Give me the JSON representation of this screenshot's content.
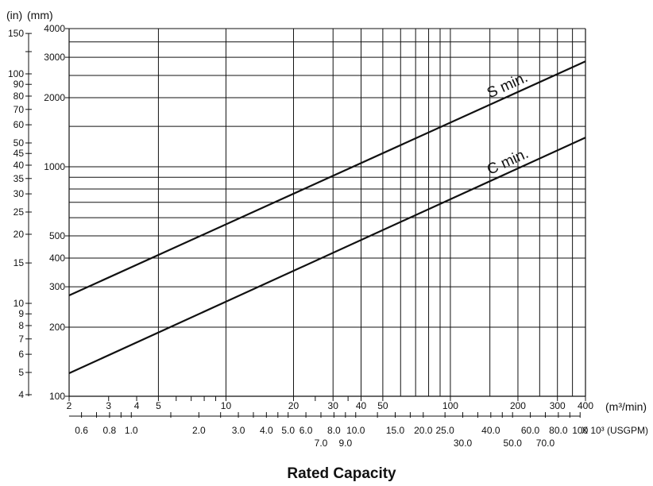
{
  "chart_data": {
    "type": "line",
    "title": "",
    "xlabel": "Rated Capacity",
    "x_scale": "log",
    "y_scale": "log",
    "xlim": [
      2,
      400
    ],
    "ylim_mm": [
      100,
      4000
    ],
    "x_units": "(m³/min)",
    "x2_units": "X 10³ (USGPM)",
    "y_units_mm": "(mm)",
    "y_units_in": "(in)",
    "grid": true,
    "x_ticks_major": [
      {
        "v": 2,
        "l": "2"
      },
      {
        "v": 3,
        "l": "3"
      },
      {
        "v": 4,
        "l": "4"
      },
      {
        "v": 5,
        "l": "5"
      },
      {
        "v": 10,
        "l": "10"
      },
      {
        "v": 20,
        "l": "20"
      },
      {
        "v": 30,
        "l": "30"
      },
      {
        "v": 40,
        "l": "40"
      },
      {
        "v": 50,
        "l": "50"
      },
      {
        "v": 100,
        "l": "100"
      },
      {
        "v": 200,
        "l": "200"
      },
      {
        "v": 300,
        "l": "300"
      },
      {
        "v": 400,
        "l": "400"
      }
    ],
    "x_gridlines": [
      5,
      10,
      20,
      30,
      40,
      50,
      60,
      70,
      80,
      90,
      100,
      150,
      200,
      250,
      300,
      350,
      400
    ],
    "x_minor_ticks": [
      6,
      7,
      8,
      9,
      25,
      35
    ],
    "y_ticks_mm": [
      {
        "v": 100,
        "l": "100"
      },
      {
        "v": 200,
        "l": "200"
      },
      {
        "v": 300,
        "l": "300"
      },
      {
        "v": 400,
        "l": "400"
      },
      {
        "v": 500,
        "l": "500"
      },
      {
        "v": 1000,
        "l": "1000"
      },
      {
        "v": 2000,
        "l": "2000"
      },
      {
        "v": 3000,
        "l": "3000"
      },
      {
        "v": 4000,
        "l": "4000"
      }
    ],
    "y_gridlines_mm": [
      200,
      300,
      400,
      500,
      600,
      700,
      800,
      900,
      1000,
      1500,
      2000,
      2500,
      3000,
      3500,
      4000
    ],
    "y_ticks_in": [
      {
        "v": 4,
        "l": "4"
      },
      {
        "v": 5,
        "l": "5"
      },
      {
        "v": 6,
        "l": "6"
      },
      {
        "v": 7,
        "l": "7"
      },
      {
        "v": 8,
        "l": "8"
      },
      {
        "v": 9,
        "l": "9"
      },
      {
        "v": 10,
        "l": "10"
      },
      {
        "v": 15,
        "l": "15"
      },
      {
        "v": 20,
        "l": "20"
      },
      {
        "v": 25,
        "l": "25"
      },
      {
        "v": 30,
        "l": "30"
      },
      {
        "v": 35,
        "l": "35"
      },
      {
        "v": 40,
        "l": "40"
      },
      {
        "v": 45,
        "l": "45"
      },
      {
        "v": 50,
        "l": "50"
      },
      {
        "v": 60,
        "l": "60"
      },
      {
        "v": 70,
        "l": "70"
      },
      {
        "v": 80,
        "l": "80"
      },
      {
        "v": 90,
        "l": "90"
      },
      {
        "v": 100,
        "l": "100"
      },
      {
        "v": 150,
        "l": "150"
      }
    ],
    "y_minor_in": [
      125
    ],
    "x2_ticks": [
      {
        "v": 0.6,
        "l": "0.6",
        "row": 1
      },
      {
        "v": 0.8,
        "l": "0.8",
        "row": 1
      },
      {
        "v": 1.0,
        "l": "1.0",
        "row": 1
      },
      {
        "v": 2.0,
        "l": "2.0",
        "row": 1
      },
      {
        "v": 3.0,
        "l": "3.0",
        "row": 1
      },
      {
        "v": 4.0,
        "l": "4.0",
        "row": 1
      },
      {
        "v": 5.0,
        "l": "5.0",
        "row": 1
      },
      {
        "v": 6.0,
        "l": "6.0",
        "row": 1
      },
      {
        "v": 7.0,
        "l": "7.0",
        "row": 2
      },
      {
        "v": 8.0,
        "l": "8.0",
        "row": 1
      },
      {
        "v": 9.0,
        "l": "9.0",
        "row": 2
      },
      {
        "v": 10.0,
        "l": "10.0",
        "row": 1
      },
      {
        "v": 15.0,
        "l": "15.0",
        "row": 1
      },
      {
        "v": 20.0,
        "l": "20.0",
        "row": 1
      },
      {
        "v": 25.0,
        "l": "25.0",
        "row": 1
      },
      {
        "v": 30.0,
        "l": "30.0",
        "row": 2
      },
      {
        "v": 40.0,
        "l": "40.0",
        "row": 1
      },
      {
        "v": 50.0,
        "l": "50.0",
        "row": 2
      },
      {
        "v": 60.0,
        "l": "60.0",
        "row": 1
      },
      {
        "v": 70.0,
        "l": "70.0",
        "row": 2
      },
      {
        "v": 80.0,
        "l": "80.0",
        "row": 1
      },
      {
        "v": 100,
        "l": "100",
        "row": 1
      }
    ],
    "x2_minor_ticks": [
      0.7,
      0.9,
      1.5,
      2.5,
      3.5,
      4.5,
      12.5,
      17.5,
      35.0,
      45.0,
      90.0
    ],
    "series": [
      {
        "name": "S min.",
        "x": [
          2,
          400
        ],
        "y": [
          275,
          2880
        ]
      },
      {
        "name": "C min.",
        "x": [
          2,
          400
        ],
        "y": [
          126,
          1340
        ]
      }
    ]
  }
}
